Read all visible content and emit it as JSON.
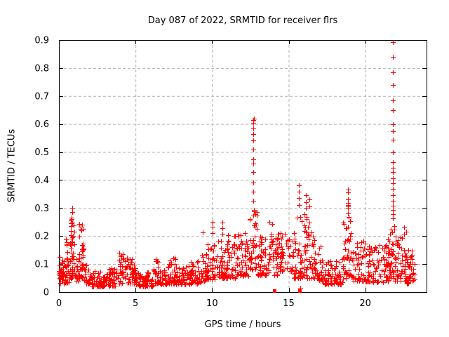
{
  "window": {
    "title": "Day 087 of 2022, SRMTID for receiver flrs"
  },
  "chart_data": {
    "type": "scatter",
    "title": "Day 087 of 2022, SRMTID for receiver flrs",
    "xlabel": "GPS time / hours",
    "ylabel": "SRMTID / TECUs",
    "xlim": [
      0,
      24
    ],
    "ylim": [
      0,
      0.9
    ],
    "grid": true,
    "legend": "none",
    "marker": "plus",
    "seed": 87,
    "colors": {
      "marker": "#ff0000",
      "grid": "#b0b0b0",
      "axis": "#000000",
      "background": "#ffffff",
      "text": "#000000"
    },
    "xticks": [
      {
        "v": 0,
        "label": "0"
      },
      {
        "v": 5,
        "label": "5"
      },
      {
        "v": 10,
        "label": "10"
      },
      {
        "v": 15,
        "label": "15"
      },
      {
        "v": 20,
        "label": "20"
      }
    ],
    "yticks": [
      {
        "v": 0,
        "label": "0"
      },
      {
        "v": 0.1,
        "label": "0.1"
      },
      {
        "v": 0.2,
        "label": "0.2"
      },
      {
        "v": 0.3,
        "label": "0.3"
      },
      {
        "v": 0.4,
        "label": "0.4"
      },
      {
        "v": 0.5,
        "label": "0.5"
      },
      {
        "v": 0.6,
        "label": "0.6"
      },
      {
        "v": 0.7,
        "label": "0.7"
      },
      {
        "v": 0.8,
        "label": "0.8"
      },
      {
        "v": 0.9,
        "label": "0.9"
      }
    ],
    "bands_format": "[x_start_hours, x_end_hours, y_min_TECU, y_max_TECU, n_points] — estimated envelope of the dense scatter cloud",
    "bands": [
      [
        0.02,
        0.3,
        0.03,
        0.13,
        30
      ],
      [
        0.3,
        0.7,
        0.03,
        0.12,
        30
      ],
      [
        0.45,
        0.62,
        0.095,
        0.2,
        7
      ],
      [
        0.7,
        1.05,
        0.05,
        0.27,
        46
      ],
      [
        1.05,
        1.3,
        0.04,
        0.12,
        15
      ],
      [
        1.3,
        1.65,
        0.05,
        0.25,
        40
      ],
      [
        1.65,
        2.1,
        0.03,
        0.1,
        28
      ],
      [
        2.1,
        3.2,
        0.02,
        0.075,
        70
      ],
      [
        3.2,
        3.9,
        0.022,
        0.085,
        45
      ],
      [
        3.9,
        4.25,
        0.03,
        0.145,
        25
      ],
      [
        4.25,
        5.05,
        0.03,
        0.125,
        50
      ],
      [
        5.05,
        6.15,
        0.02,
        0.07,
        70
      ],
      [
        6.15,
        6.55,
        0.03,
        0.15,
        28
      ],
      [
        6.55,
        7.0,
        0.025,
        0.08,
        28
      ],
      [
        7.0,
        7.65,
        0.03,
        0.13,
        42
      ],
      [
        7.65,
        8.6,
        0.028,
        0.095,
        60
      ],
      [
        8.6,
        9.25,
        0.03,
        0.11,
        42
      ],
      [
        9.25,
        9.65,
        0.04,
        0.14,
        26
      ],
      [
        9.65,
        10.2,
        0.045,
        0.175,
        36
      ],
      [
        10.2,
        10.95,
        0.05,
        0.19,
        50
      ],
      [
        10.95,
        11.65,
        0.05,
        0.205,
        48
      ],
      [
        11.65,
        12.4,
        0.055,
        0.22,
        50
      ],
      [
        12.4,
        12.95,
        0.08,
        0.3,
        46
      ],
      [
        12.95,
        13.7,
        0.06,
        0.2,
        50
      ],
      [
        13.7,
        13.95,
        0.1,
        0.255,
        16
      ],
      [
        13.95,
        14.3,
        0.06,
        0.2,
        24
      ],
      [
        14.3,
        15.3,
        0.075,
        0.215,
        55
      ],
      [
        15.3,
        16.5,
        0.05,
        0.29,
        85
      ],
      [
        16.5,
        16.9,
        0.05,
        0.24,
        28
      ],
      [
        16.9,
        17.3,
        0.04,
        0.17,
        24
      ],
      [
        17.3,
        18.55,
        0.028,
        0.12,
        75
      ],
      [
        18.55,
        19.1,
        0.05,
        0.295,
        46
      ],
      [
        19.1,
        20.0,
        0.04,
        0.19,
        55
      ],
      [
        20.0,
        21.5,
        0.035,
        0.17,
        92
      ],
      [
        21.5,
        21.95,
        0.05,
        0.255,
        40
      ],
      [
        21.95,
        22.45,
        0.04,
        0.2,
        35
      ],
      [
        22.45,
        22.7,
        0.04,
        0.235,
        18
      ],
      [
        22.7,
        23.1,
        0.03,
        0.15,
        28
      ],
      [
        23.1,
        23.25,
        0.04,
        0.11,
        8
      ]
    ],
    "spikes_format": "isolated plus-marker streaks: {x_hours, ys[] TECU values}",
    "spikes": [
      {
        "x": 0.88,
        "ys": [
          0.285,
          0.302
        ]
      },
      {
        "x": 9.4,
        "ys": [
          0.212
        ]
      },
      {
        "x": 10.05,
        "ys": [
          0.21,
          0.232,
          0.25
        ]
      },
      {
        "x": 10.65,
        "ys": [
          0.208,
          0.228,
          0.248
        ]
      },
      {
        "x": 12.67,
        "ys": [
          0.325,
          0.358,
          0.392,
          0.428,
          0.458,
          0.475,
          0.508,
          0.542,
          0.565,
          0.585,
          0.605,
          0.615
        ]
      },
      {
        "x": 12.72,
        "ys": [
          0.62
        ]
      },
      {
        "x": 15.68,
        "ys": [
          0.31,
          0.335,
          0.358,
          0.382
        ]
      },
      {
        "x": 15.76,
        "ys": [
          0.015
        ]
      },
      {
        "x": 16.1,
        "ys": [
          0.3,
          0.322,
          0.345
        ]
      },
      {
        "x": 16.35,
        "ys": [
          0.305,
          0.33
        ]
      },
      {
        "x": 18.85,
        "ys": [
          0.3,
          0.305,
          0.312,
          0.318,
          0.332,
          0.356,
          0.365
        ]
      },
      {
        "x": 21.8,
        "ys": [
          0.262,
          0.278,
          0.293,
          0.308,
          0.325,
          0.345,
          0.368,
          0.388,
          0.405,
          0.428,
          0.443,
          0.465,
          0.5,
          0.545,
          0.575,
          0.6,
          0.65,
          0.685,
          0.74,
          0.785,
          0.84,
          0.892
        ]
      }
    ],
    "squares_format": "solid square markers sitting on the x-axis: [x_hours, y_TECU]",
    "squares": [
      [
        14.08,
        0.004
      ],
      [
        15.72,
        0.004
      ]
    ]
  }
}
